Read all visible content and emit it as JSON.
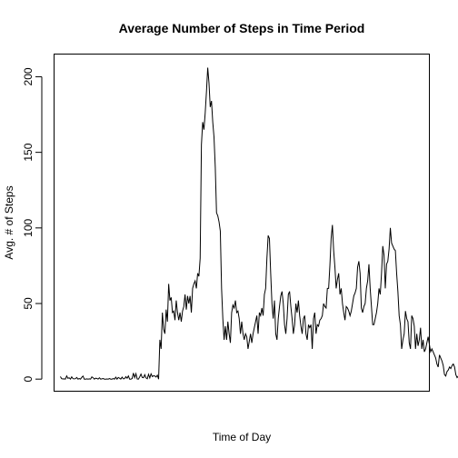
{
  "chart_data": {
    "type": "line",
    "title": "Average Number of Steps in Time Period",
    "xlabel": "Time of Day",
    "ylabel": "Avg. # of Steps",
    "yticks": [
      "0",
      "50",
      "100",
      "150",
      "200"
    ],
    "ylim": [
      -8,
      215
    ],
    "xlim": [
      -5,
      293
    ],
    "grid": false,
    "x_tick_labels_shown": false,
    "line_color": "#000000",
    "series": [
      {
        "values": [
          1.7,
          0.3,
          0.1,
          0.2,
          0.0,
          2.1,
          0.5,
          0.9,
          0.0,
          1.5,
          0.3,
          0.2,
          0.3,
          1.1,
          0.0,
          0.4,
          0.0,
          1.2,
          2.0,
          0.0,
          0.0,
          0.2,
          0.0,
          0.2,
          0.0,
          1.5,
          0.9,
          0.0,
          0.6,
          0.4,
          0.0,
          0.9,
          0.0,
          0.2,
          0.4,
          0.0,
          0.0,
          0.1,
          0.0,
          0.4,
          0.0,
          0.0,
          0.4,
          0.0,
          1.3,
          0.0,
          1.1,
          0.6,
          0.0,
          1.3,
          0.2,
          0.3,
          1.6,
          0.6,
          2.1,
          0.0,
          0.0,
          0.4,
          4.0,
          1.0,
          3.6,
          0.1,
          0.0,
          1.5,
          3.3,
          1.1,
          0.9,
          2.9,
          0.8,
          0.2,
          3.2,
          0.8,
          3.5,
          1.7,
          2.2,
          2.1,
          1.4,
          2.6,
          0.0,
          26.0,
          20.0,
          44.0,
          33.0,
          30.0,
          46.0,
          38.0,
          63.0,
          52.0,
          54.0,
          44.0,
          45.0,
          39.0,
          52.0,
          44.0,
          39.0,
          44.0,
          38.0,
          45.0,
          48.0,
          56.0,
          46.0,
          55.0,
          50.0,
          55.0,
          44.0,
          60.0,
          63.0,
          65.0,
          60.0,
          70.0,
          68.0,
          80.0,
          155.0,
          170.0,
          165.0,
          176.0,
          190.0,
          206.0,
          196.0,
          180.0,
          184.0,
          170.0,
          160.0,
          140.0,
          110.0,
          108.0,
          104.0,
          98.0,
          60.0,
          40.0,
          26.0,
          35.0,
          26.0,
          38.0,
          30.0,
          24.0,
          44.0,
          49.0,
          47.0,
          52.0,
          44.0,
          45.0,
          40.0,
          30.0,
          38.0,
          30.0,
          26.0,
          30.0,
          28.0,
          20.0,
          25.0,
          30.0,
          24.0,
          30.0,
          34.0,
          38.0,
          42.0,
          30.0,
          44.0,
          42.0,
          47.0,
          42.0,
          56.0,
          60.0,
          80.0,
          95.0,
          93.0,
          70.0,
          50.0,
          40.0,
          52.0,
          30.0,
          26.0,
          40.0,
          48.0,
          55.0,
          58.0,
          50.0,
          36.0,
          30.0,
          40.0,
          56.0,
          58.0,
          48.0,
          40.0,
          30.0,
          36.0,
          50.0,
          44.0,
          52.0,
          42.0,
          35.0,
          30.0,
          40.0,
          42.0,
          30.0,
          26.0,
          36.0,
          34.0,
          36.0,
          20.0,
          40.0,
          44.0,
          30.0,
          36.0,
          35.0,
          39.0,
          40.0,
          42.0,
          50.0,
          48.0,
          47.0,
          60.0,
          60.0,
          75.0,
          93.0,
          102.0,
          85.0,
          74.0,
          60.0,
          66.0,
          70.0,
          56.0,
          60.0,
          50.0,
          44.0,
          39.0,
          48.0,
          47.0,
          45.0,
          42.0,
          45.0,
          50.0,
          55.0,
          57.0,
          60.0,
          74.0,
          78.0,
          70.0,
          47.0,
          44.0,
          48.0,
          50.0,
          60.0,
          65.0,
          76.0,
          60.0,
          48.0,
          36.0,
          36.0,
          40.0,
          44.0,
          50.0,
          60.0,
          56.0,
          70.0,
          88.0,
          82.0,
          60.0,
          76.0,
          78.0,
          86.0,
          100.0,
          90.0,
          88.0,
          86.0,
          85.0,
          70.0,
          58.0,
          42.0,
          36.0,
          20.0,
          26.0,
          30.0,
          45.0,
          40.0,
          38.0,
          24.0,
          20.0,
          42.0,
          40.0,
          35.0,
          20.0,
          30.0,
          22.0,
          26.0,
          34.0,
          20.0,
          26.0,
          18.0,
          20.0,
          24.0,
          28.0,
          23.0,
          18.0,
          20.0,
          18.0,
          16.0,
          14.0,
          10.0,
          8.0,
          16.0,
          14.0,
          12.0,
          9.0,
          3.0,
          2.0,
          5.0,
          6.0,
          8.0,
          7.0,
          9.0,
          10.0,
          8.0,
          3.0,
          1.0,
          2.0,
          2.0,
          0.5,
          3.0,
          3.0,
          2.0,
          4.0,
          1.0,
          2.0,
          3.0,
          6.0,
          3.0,
          0.0,
          0.0,
          1.0,
          0.5
        ]
      }
    ]
  }
}
